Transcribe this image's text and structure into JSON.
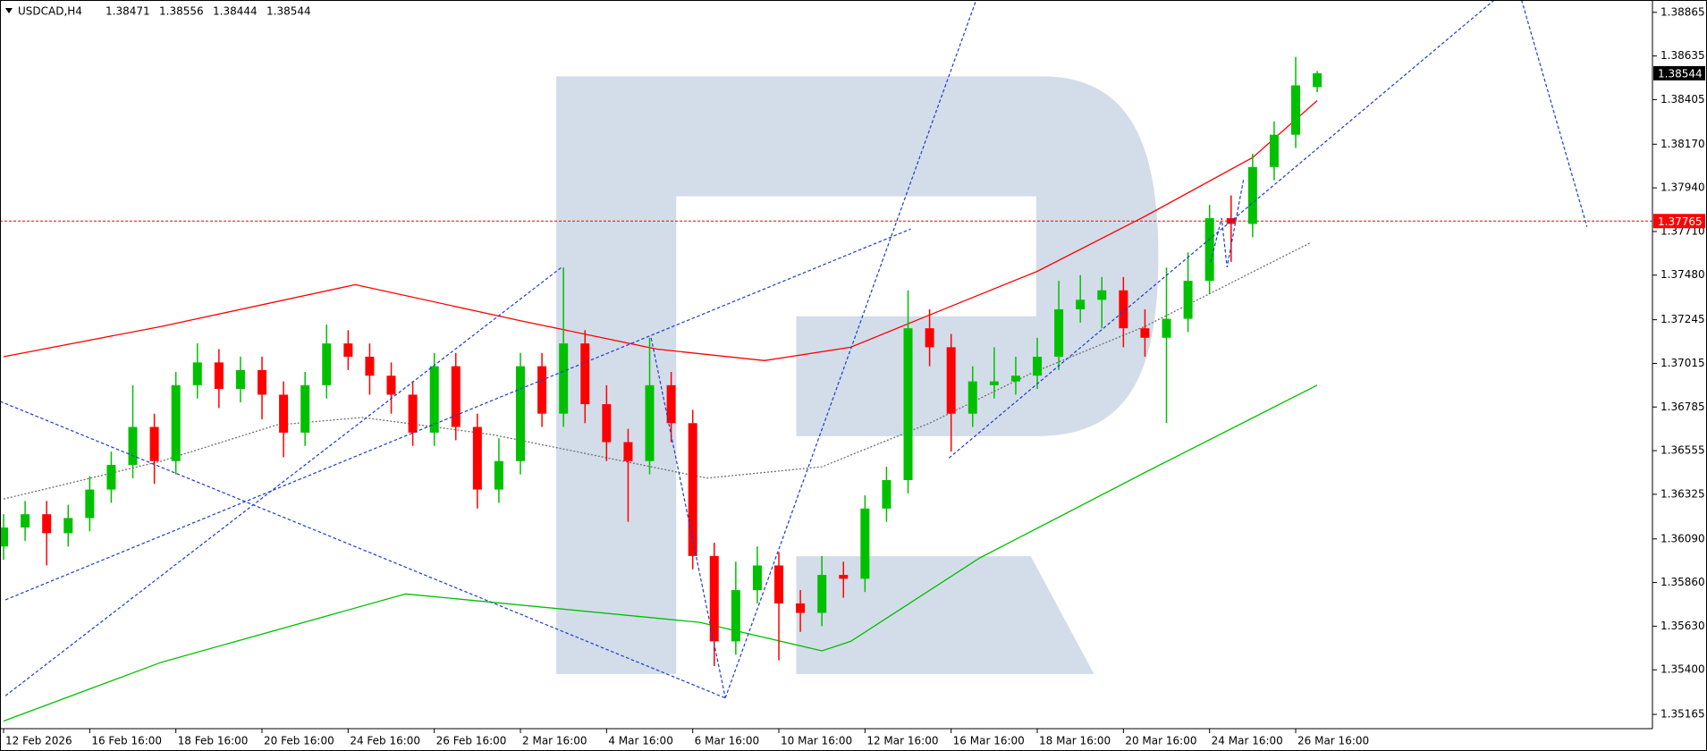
{
  "chart_data": {
    "type": "candlestick",
    "symbol": "USDCAD,H4",
    "header_ohlc": [
      1.38471,
      1.38556,
      1.38444,
      1.38544
    ],
    "up_color": "#00c000",
    "down_color": "#ff0000",
    "xlim": [
      -0.5,
      229.7
    ],
    "ylim": [
      1.3509,
      1.3893
    ],
    "yticks": [
      1.38865,
      1.38635,
      1.38405,
      {
        "value": 1.3817,
        "label": "1.38170"
      },
      {
        "value": 1.3794,
        "label": "1.37940"
      },
      {
        "value": 1.3771,
        "label": "1.37710"
      },
      {
        "value": 1.3748,
        "label": "1.37480"
      },
      1.37245,
      1.37015,
      1.36785,
      1.36555,
      1.36325,
      {
        "value": 1.3609,
        "label": "1.36090"
      },
      {
        "value": 1.3586,
        "label": "1.35860"
      },
      {
        "value": 1.3563,
        "label": "1.35630"
      },
      {
        "value": 1.354,
        "label": "1.35400"
      },
      1.35165
    ],
    "xticks": [
      {
        "value": 0,
        "label": "12 Feb 2026"
      },
      {
        "value": 12,
        "label": "16 Feb 16:00"
      },
      {
        "value": 24,
        "label": "18 Feb 16:00"
      },
      {
        "value": 36,
        "label": "20 Feb 16:00"
      },
      {
        "value": 48,
        "label": "24 Feb 16:00"
      },
      {
        "value": 60,
        "label": "26 Feb 16:00"
      },
      {
        "value": 72,
        "label": "2 Mar 16:00"
      },
      {
        "value": 84,
        "label": "4 Mar 16:00"
      },
      {
        "value": 96,
        "label": "6 Mar 16:00"
      },
      {
        "value": 108,
        "label": "10 Mar 16:00"
      },
      {
        "value": 120,
        "label": "12 Mar 16:00"
      },
      {
        "value": 132,
        "label": "16 Mar 16:00"
      },
      {
        "value": 144,
        "label": "18 Mar 16:00"
      },
      {
        "value": 156,
        "label": "20 Mar 16:00"
      },
      {
        "value": 168,
        "label": "24 Mar 16:00"
      },
      {
        "value": 180,
        "label": "26 Mar 16:00"
      }
    ],
    "x": [
      0,
      3,
      6,
      9,
      12,
      15,
      18,
      21,
      24,
      27,
      30,
      33,
      36,
      39,
      42,
      45,
      48,
      51,
      54,
      57,
      60,
      63,
      66,
      69,
      72,
      75,
      78,
      81,
      84,
      87,
      90,
      93,
      96,
      99,
      102,
      105,
      108,
      111,
      114,
      117,
      120,
      123,
      126,
      129,
      132,
      135,
      138,
      141,
      144,
      147,
      150,
      153,
      156,
      159,
      162,
      165,
      168,
      171,
      174,
      177,
      180,
      183
    ],
    "open": [
      1.3605,
      1.3615,
      1.3622,
      1.3612,
      1.362,
      1.3635,
      1.3648,
      1.3668,
      1.365,
      1.369,
      1.3702,
      1.3688,
      1.3698,
      1.3685,
      1.3665,
      1.369,
      1.3712,
      1.3705,
      1.3695,
      1.3685,
      1.3665,
      1.37,
      1.3668,
      1.3635,
      1.365,
      1.37,
      1.3675,
      1.3712,
      1.368,
      1.366,
      1.365,
      1.369,
      1.367,
      1.36,
      1.3555,
      1.3582,
      1.3595,
      1.3575,
      1.357,
      1.359,
      1.3588,
      1.3625,
      1.364,
      1.372,
      1.371,
      1.3675,
      1.369,
      1.3692,
      1.3695,
      1.3705,
      1.373,
      1.3735,
      1.374,
      1.372,
      1.3715,
      1.3725,
      1.3745,
      1.3778,
      1.3775,
      1.3805,
      1.3822,
      1.38471
    ],
    "high": [
      1.3622,
      1.3629,
      1.3629,
      1.3627,
      1.3642,
      1.3655,
      1.369,
      1.3675,
      1.3697,
      1.3712,
      1.3709,
      1.3705,
      1.3705,
      1.3692,
      1.3697,
      1.3722,
      1.3719,
      1.3712,
      1.3702,
      1.3692,
      1.3707,
      1.3707,
      1.3675,
      1.3662,
      1.3707,
      1.3707,
      1.3752,
      1.3719,
      1.369,
      1.3667,
      1.3715,
      1.3697,
      1.3677,
      1.3607,
      1.3597,
      1.3605,
      1.3602,
      1.3582,
      1.36,
      1.3597,
      1.3632,
      1.3647,
      1.374,
      1.373,
      1.3717,
      1.37,
      1.371,
      1.3705,
      1.3715,
      1.3745,
      1.3748,
      1.3747,
      1.3747,
      1.373,
      1.3752,
      1.376,
      1.3785,
      1.379,
      1.3812,
      1.3829,
      1.3863,
      1.38556
    ],
    "low": [
      1.3598,
      1.3608,
      1.3595,
      1.3605,
      1.3613,
      1.3628,
      1.3641,
      1.3638,
      1.3643,
      1.3683,
      1.3678,
      1.3681,
      1.3672,
      1.3652,
      1.3658,
      1.3683,
      1.3698,
      1.3685,
      1.3675,
      1.3658,
      1.3658,
      1.3661,
      1.3625,
      1.3628,
      1.3643,
      1.3668,
      1.3668,
      1.367,
      1.365,
      1.3618,
      1.3643,
      1.366,
      1.3593,
      1.3542,
      1.3548,
      1.3575,
      1.3545,
      1.356,
      1.3563,
      1.3578,
      1.3581,
      1.3618,
      1.3633,
      1.37,
      1.3655,
      1.3668,
      1.3683,
      1.3685,
      1.3688,
      1.3698,
      1.3723,
      1.372,
      1.371,
      1.3705,
      1.367,
      1.3718,
      1.3738,
      1.3755,
      1.3768,
      1.3798,
      1.3815,
      1.38444
    ],
    "close": [
      1.3615,
      1.3622,
      1.3612,
      1.362,
      1.3635,
      1.3648,
      1.3668,
      1.365,
      1.369,
      1.3702,
      1.3688,
      1.3698,
      1.3685,
      1.3665,
      1.369,
      1.3712,
      1.3705,
      1.3695,
      1.3685,
      1.3665,
      1.37,
      1.3668,
      1.3635,
      1.365,
      1.37,
      1.3675,
      1.3712,
      1.368,
      1.366,
      1.365,
      1.369,
      1.367,
      1.36,
      1.3555,
      1.3582,
      1.3595,
      1.3575,
      1.357,
      1.359,
      1.3588,
      1.3625,
      1.364,
      1.372,
      1.371,
      1.3675,
      1.3692,
      1.3692,
      1.3695,
      1.3705,
      1.373,
      1.3735,
      1.374,
      1.372,
      1.3715,
      1.3725,
      1.3745,
      1.3778,
      1.3775,
      1.3805,
      1.3822,
      1.3848,
      1.38544
    ],
    "lines": [
      {
        "color": "#ff0000",
        "dash": false,
        "x": [
          0,
          22,
          49,
          72,
          91,
          106,
          118,
          129,
          144,
          159,
          174,
          183
        ],
        "values": [
          1.3705,
          1.3721,
          1.3743,
          1.3724,
          1.3709,
          1.3703,
          1.371,
          1.3727,
          1.375,
          1.3779,
          1.381,
          1.384
        ]
      },
      {
        "color": "#00c000",
        "dash": false,
        "x": [
          0,
          22,
          56,
          97,
          114,
          118,
          136,
          159,
          183
        ],
        "values": [
          1.3513,
          1.3544,
          1.358,
          1.3565,
          1.355,
          1.3555,
          1.3599,
          1.3644,
          1.369
        ]
      },
      {
        "color": "#707070",
        "dash": true,
        "x": [
          0,
          22,
          38,
          50,
          68,
          98,
          114,
          129,
          143,
          159,
          182
        ],
        "values": [
          1.363,
          1.365,
          1.3669,
          1.3673,
          1.3664,
          1.3641,
          1.3647,
          1.367,
          1.3696,
          1.3721,
          1.3765
        ]
      }
    ],
    "current_price": 1.38544,
    "level": 1.37765,
    "level_color": "#ff0000"
  }
}
